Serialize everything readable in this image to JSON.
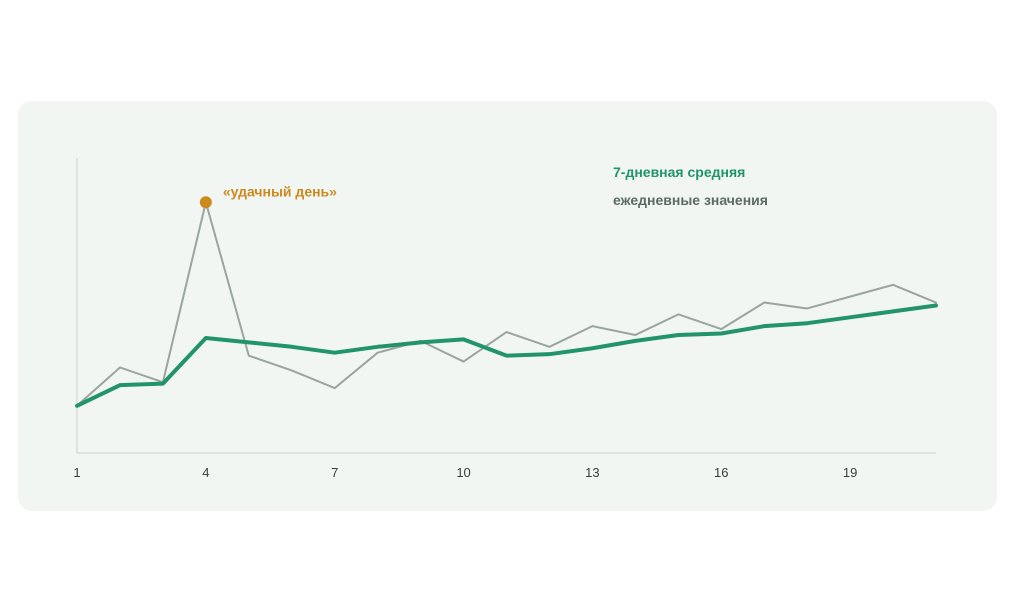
{
  "chart_data": {
    "type": "line",
    "x": [
      1,
      2,
      3,
      4,
      5,
      6,
      7,
      8,
      9,
      10,
      11,
      12,
      13,
      14,
      15,
      16,
      17,
      18,
      19,
      20,
      21
    ],
    "x_ticks": [
      1,
      4,
      7,
      10,
      13,
      16,
      19
    ],
    "xlim": [
      1,
      21
    ],
    "ylim": [
      0,
      100
    ],
    "grid": false,
    "legend_position": "top-right",
    "series": [
      {
        "name": "ежедневные значения",
        "color": "#9aa59f",
        "values": [
          16,
          29,
          24,
          85,
          33,
          28,
          22,
          34,
          38,
          31,
          41,
          36,
          43,
          40,
          47,
          42,
          51,
          49,
          53,
          57,
          51
        ]
      },
      {
        "name": "7-дневная средняя",
        "color": "#21946b",
        "values": [
          16,
          23,
          23.5,
          39,
          37.5,
          36,
          34,
          36,
          37.5,
          38.5,
          33,
          33.5,
          35.5,
          38,
          40,
          40.5,
          43,
          44,
          46,
          48,
          50
        ]
      }
    ],
    "annotations": [
      {
        "x": 4,
        "y": 85,
        "text": "«удачный день»",
        "color": "#cc8a1e"
      }
    ]
  }
}
